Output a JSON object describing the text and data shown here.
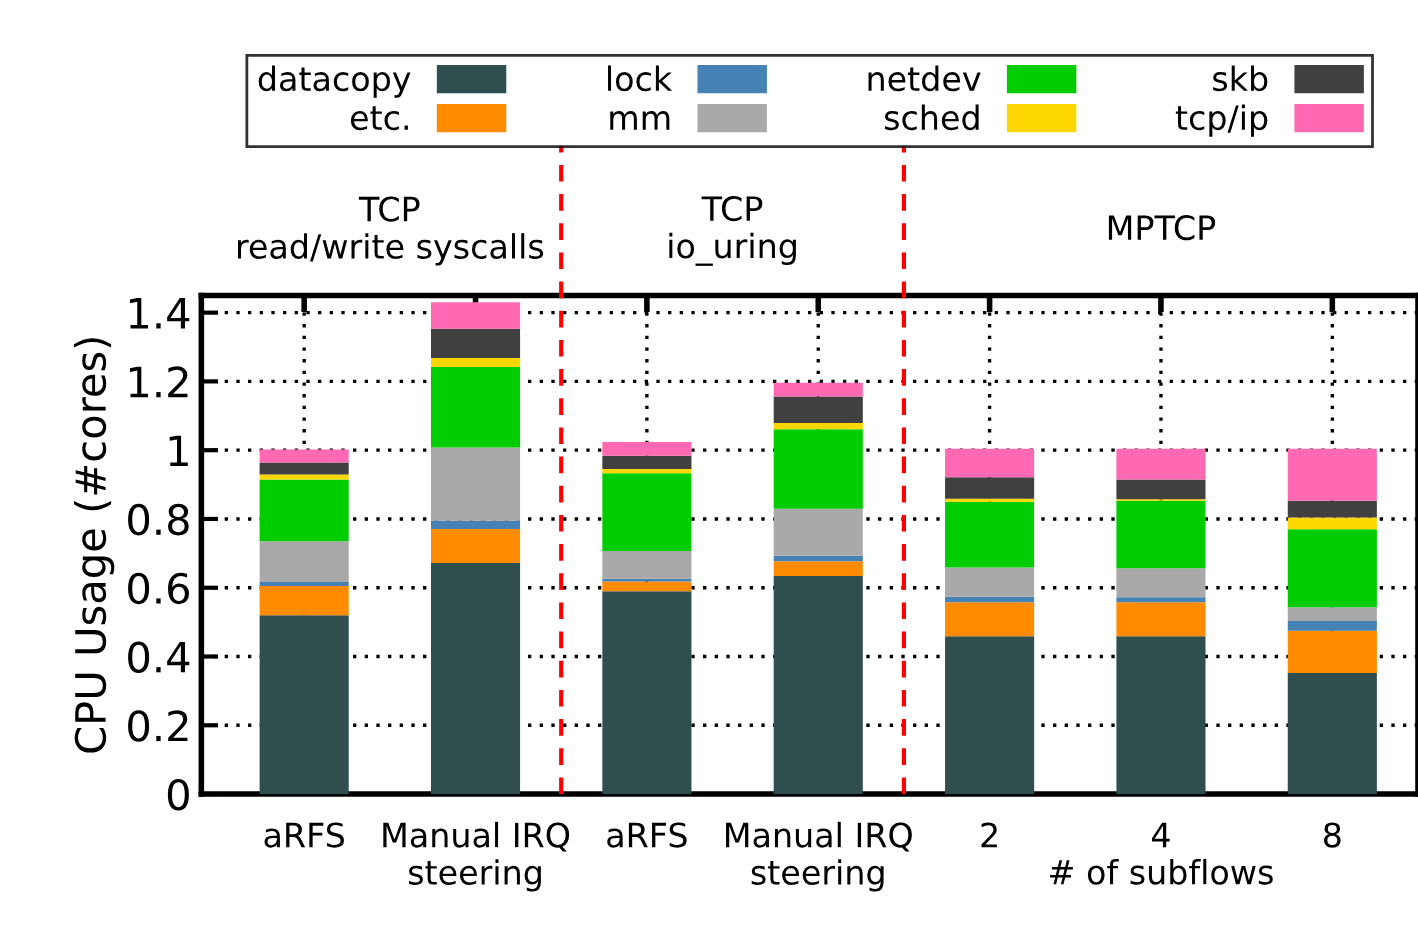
{
  "chart_data": {
    "type": "bar",
    "stacked": true,
    "categories": [
      "aRFS",
      "Manual IRQ\nsteering",
      "aRFS",
      "Manual IRQ\nsteering",
      "2",
      "4",
      "8"
    ],
    "series": [
      {
        "name": "datacopy",
        "color": "#2f4f4f",
        "values": [
          0.52,
          0.672,
          0.59,
          0.634,
          0.459,
          0.459,
          0.352
        ]
      },
      {
        "name": "etc.",
        "color": "#ff8c00",
        "values": [
          0.085,
          0.099,
          0.028,
          0.043,
          0.099,
          0.099,
          0.123
        ]
      },
      {
        "name": "lock",
        "color": "#4682b4",
        "values": [
          0.012,
          0.024,
          0.008,
          0.016,
          0.016,
          0.014,
          0.028
        ]
      },
      {
        "name": "mm",
        "color": "#a9a9a9",
        "values": [
          0.118,
          0.213,
          0.081,
          0.137,
          0.085,
          0.085,
          0.04
        ]
      },
      {
        "name": "netdev",
        "color": "#00cd00",
        "values": [
          0.18,
          0.234,
          0.226,
          0.231,
          0.191,
          0.196,
          0.227
        ]
      },
      {
        "name": "sched",
        "color": "#ffd700",
        "values": [
          0.014,
          0.026,
          0.012,
          0.018,
          0.009,
          0.004,
          0.034
        ]
      },
      {
        "name": "skb",
        "color": "#404040",
        "values": [
          0.035,
          0.085,
          0.039,
          0.077,
          0.062,
          0.058,
          0.049
        ]
      },
      {
        "name": "tcp/ip",
        "color": "#ff69b4",
        "values": [
          0.038,
          0.077,
          0.04,
          0.04,
          0.083,
          0.089,
          0.151
        ]
      }
    ],
    "ylabel": "CPU Usage (#cores)",
    "xlabel": "# of subflows",
    "ylim": [
      0,
      1.45
    ],
    "yticks": [
      0,
      0.2,
      0.4,
      0.6,
      0.8,
      1,
      1.2,
      1.4
    ],
    "annotations": [
      "TCP\nread/write syscalls",
      "TCP\nio_uring",
      "MPTCP"
    ],
    "grid": true,
    "legend": "top"
  }
}
